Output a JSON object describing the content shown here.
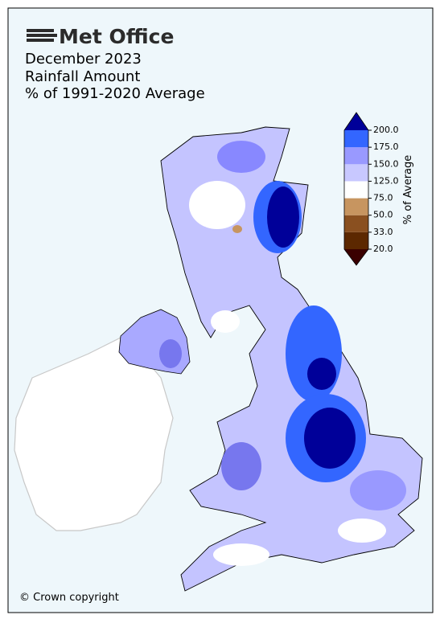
{
  "header": {
    "logo": "Met Office",
    "title_lines": [
      "December 2023",
      "Rainfall Amount",
      "% of 1991-2020 Average"
    ]
  },
  "colorbar": {
    "label": "% of Average",
    "ticks": [
      {
        "value": 20,
        "label": "20.0"
      },
      {
        "value": 33,
        "label": "33.0"
      },
      {
        "value": 50,
        "label": "50.0"
      },
      {
        "value": 75,
        "label": "75.0"
      },
      {
        "value": 125,
        "label": "125.0"
      },
      {
        "value": 150,
        "label": "150.0"
      },
      {
        "value": 175,
        "label": "175.0"
      },
      {
        "value": 200,
        "label": "200.0"
      }
    ],
    "colors": [
      "#5c2800",
      "#8a5020",
      "#c79560",
      "#ffffff",
      "#c8c8ff",
      "#9999ff",
      "#3366ff"
    ],
    "under_color": "#3a0000",
    "over_color": "#000099"
  },
  "footer": {
    "copyright": "© Crown copyright"
  }
}
